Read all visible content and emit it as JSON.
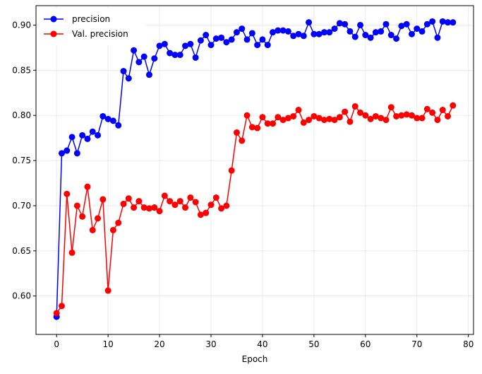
{
  "chart_data": {
    "type": "line",
    "title": "",
    "xlabel": "Epoch",
    "ylabel": "",
    "xlim": [
      -4,
      81
    ],
    "ylim": [
      0.5575,
      0.9215
    ],
    "x_ticks": [
      0,
      10,
      20,
      30,
      40,
      50,
      60,
      70,
      80
    ],
    "y_ticks": [
      0.6,
      0.65,
      0.7,
      0.75,
      0.8,
      0.85,
      0.9
    ],
    "x_tick_labels": [
      "0",
      "10",
      "20",
      "30",
      "40",
      "50",
      "60",
      "70",
      "80"
    ],
    "y_tick_labels": [
      "0.60",
      "0.65",
      "0.70",
      "0.75",
      "0.80",
      "0.85",
      "0.90"
    ],
    "grid": true,
    "legend_position": "top-left",
    "x": [
      0,
      1,
      2,
      3,
      4,
      5,
      6,
      7,
      8,
      9,
      10,
      11,
      12,
      13,
      14,
      15,
      16,
      17,
      18,
      19,
      20,
      21,
      22,
      23,
      24,
      25,
      26,
      27,
      28,
      29,
      30,
      31,
      32,
      33,
      34,
      35,
      36,
      37,
      38,
      39,
      40,
      41,
      42,
      43,
      44,
      45,
      46,
      47,
      48,
      49,
      50,
      51,
      52,
      53,
      54,
      55,
      56,
      57,
      58,
      59,
      60,
      61,
      62,
      63,
      64,
      65,
      66,
      67,
      68,
      69,
      70,
      71,
      72,
      73,
      74,
      75,
      76,
      77
    ],
    "series": [
      {
        "name": "precision",
        "color": "#0000ff",
        "values": [
          0.577,
          0.758,
          0.761,
          0.776,
          0.758,
          0.778,
          0.774,
          0.782,
          0.778,
          0.799,
          0.796,
          0.794,
          0.789,
          0.849,
          0.841,
          0.872,
          0.859,
          0.865,
          0.845,
          0.863,
          0.877,
          0.879,
          0.869,
          0.867,
          0.867,
          0.877,
          0.879,
          0.864,
          0.883,
          0.889,
          0.878,
          0.885,
          0.886,
          0.881,
          0.884,
          0.892,
          0.896,
          0.884,
          0.891,
          0.878,
          0.884,
          0.878,
          0.892,
          0.894,
          0.894,
          0.893,
          0.888,
          0.89,
          0.888,
          0.903,
          0.89,
          0.89,
          0.892,
          0.892,
          0.896,
          0.902,
          0.901,
          0.893,
          0.887,
          0.9,
          0.889,
          0.886,
          0.892,
          0.893,
          0.901,
          0.889,
          0.885,
          0.899,
          0.901,
          0.89,
          0.896,
          0.893,
          0.901,
          0.904,
          0.886,
          0.904,
          0.903,
          0.903
        ]
      },
      {
        "name": "Val. precision",
        "color": "#ff0000",
        "values": [
          0.581,
          0.589,
          0.713,
          0.648,
          0.7,
          0.688,
          0.721,
          0.673,
          0.686,
          0.707,
          0.606,
          0.673,
          0.681,
          0.702,
          0.708,
          0.698,
          0.705,
          0.698,
          0.697,
          0.698,
          0.694,
          0.711,
          0.705,
          0.701,
          0.705,
          0.698,
          0.709,
          0.704,
          0.69,
          0.692,
          0.701,
          0.709,
          0.697,
          0.7,
          0.739,
          0.781,
          0.772,
          0.8,
          0.787,
          0.786,
          0.798,
          0.791,
          0.791,
          0.798,
          0.795,
          0.797,
          0.799,
          0.806,
          0.792,
          0.795,
          0.799,
          0.797,
          0.795,
          0.796,
          0.795,
          0.798,
          0.804,
          0.793,
          0.81,
          0.803,
          0.8,
          0.796,
          0.799,
          0.797,
          0.795,
          0.809,
          0.799,
          0.8,
          0.801,
          0.8,
          0.797,
          0.797,
          0.807,
          0.803,
          0.795,
          0.806,
          0.799,
          0.811
        ]
      }
    ]
  }
}
